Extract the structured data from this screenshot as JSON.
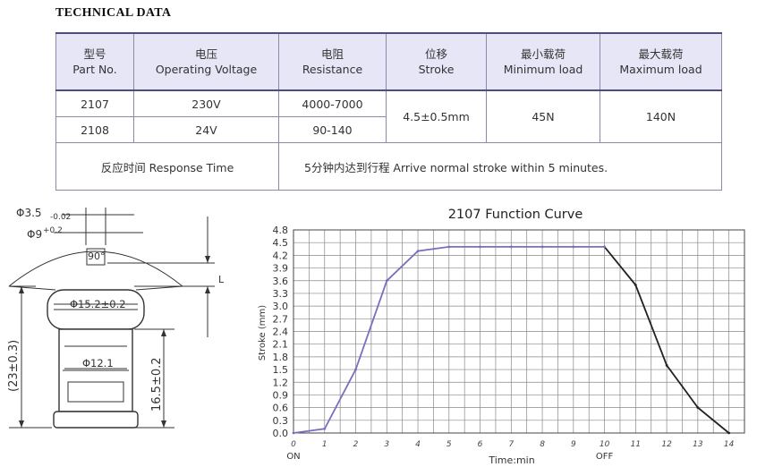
{
  "heading": "TECHNICAL DATA",
  "table": {
    "headers": [
      {
        "zh": "型号",
        "en": "Part No."
      },
      {
        "zh": "电压",
        "en": "Operating Voltage"
      },
      {
        "zh": "电阻",
        "en": "Resistance"
      },
      {
        "zh": "位移",
        "en": "Stroke"
      },
      {
        "zh": "最小载荷",
        "en": "Minimum load"
      },
      {
        "zh": "最大载荷",
        "en": "Maximum  load"
      }
    ],
    "rows": [
      {
        "part": "2107",
        "voltage": "230V",
        "resistance": "4000-7000"
      },
      {
        "part": "2108",
        "voltage": "24V",
        "resistance": "90-140"
      }
    ],
    "stroke": "4.5±0.5mm",
    "min_load": "45N",
    "max_load": "140N",
    "response_label": "反应时间 Response Time",
    "response_value": "5分钟内达到行程 Arrive normal stroke within 5 minutes."
  },
  "drawing": {
    "dim_top1": "Φ3.5",
    "dim_top1_tol": "-0.02",
    "dim_top2": "Φ9",
    "dim_top2_tol": "+0.2",
    "angle": "90°",
    "dim_head": "Φ15.2±0.2",
    "dim_body": "Φ12.1",
    "dim_total": "(23±0.3)",
    "dim_body_len": "16.5±0.2",
    "dim_l": "L"
  },
  "chart_data": {
    "type": "line",
    "title": "2107 Function Curve",
    "xlabel": "Time:min",
    "ylabel": "Stroke (mm)",
    "x_ticks": [
      0,
      1,
      2,
      3,
      4,
      5,
      6,
      7,
      8,
      9,
      10,
      11,
      12,
      13,
      14
    ],
    "y_ticks": [
      "0.0",
      "0.3",
      "0.6",
      "0.9",
      "1.2",
      "1.5",
      "1.8",
      "2.1",
      "2.4",
      "2.7",
      "3.0",
      "3.3",
      "3.6",
      "3.9",
      "4.2",
      "4.5",
      "4.8"
    ],
    "xlim": [
      0,
      14.5
    ],
    "ylim": [
      0,
      4.8
    ],
    "x_annotations": [
      {
        "x": 0,
        "text": "ON"
      },
      {
        "x": 10,
        "text": "OFF"
      }
    ],
    "grid": true,
    "line_color": "#7a6ec0",
    "line_color_off": "#222222",
    "x": [
      0,
      1,
      2,
      3,
      4,
      5,
      6,
      7,
      8,
      9,
      10,
      11,
      12,
      13,
      14
    ],
    "y": [
      0,
      0.1,
      1.5,
      3.6,
      4.3,
      4.4,
      4.4,
      4.4,
      4.4,
      4.4,
      4.4,
      3.5,
      1.6,
      0.6,
      0
    ]
  }
}
